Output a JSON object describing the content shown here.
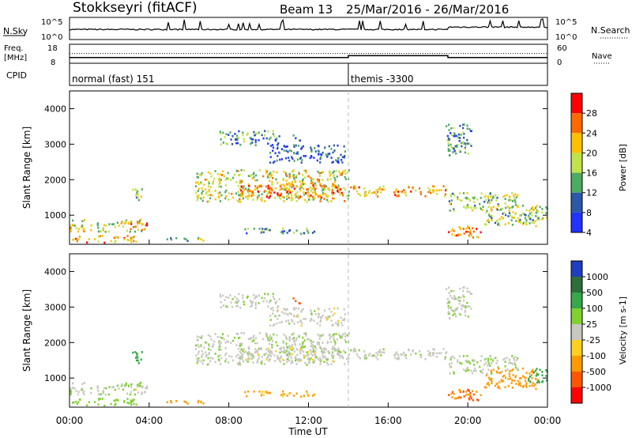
{
  "header": {
    "radar": "Stokkseyri (fitACF)",
    "beam": "Beam 13",
    "dates": "25/Mar/2016 - 26/Mar/2016"
  },
  "noise_panel": {
    "left_label": "N.Sky",
    "right_label": "N.Search",
    "tick_high": "10^5",
    "tick_low": "10^0"
  },
  "freq_panel": {
    "left_label_1": "Freq.",
    "left_label_2": "[MHz]",
    "left_ticks": [
      "18",
      "8"
    ],
    "right_ticks": [
      "60",
      "0"
    ],
    "right_label": "Nave",
    "freq_mhz": [
      {
        "start_h": 0,
        "end_h": 14,
        "value": 11
      },
      {
        "start_h": 14,
        "end_h": 19,
        "value": 12
      },
      {
        "start_h": 19,
        "end_h": 24,
        "value": 11
      }
    ],
    "nave": [
      {
        "start_h": 0,
        "end_h": 14,
        "value": 31
      },
      {
        "start_h": 14,
        "end_h": 19,
        "value": 31
      },
      {
        "start_h": 19,
        "end_h": 24,
        "value": 31
      }
    ]
  },
  "cpid_panel": {
    "label": "CPID",
    "modes": [
      {
        "start_h": 0,
        "name": "normal (fast) 151"
      },
      {
        "start_h": 14,
        "name": "themis -3300"
      }
    ]
  },
  "power_panel": {
    "ylabel": "Slant Range [km]",
    "yticks": [
      "4000",
      "3000",
      "2000",
      "1000"
    ],
    "cbar_label": "Power [dB]",
    "cbar_ticks": [
      "28",
      "24",
      "20",
      "16",
      "12",
      "8",
      "4"
    ],
    "cbar_colors": [
      "#ff0000",
      "#ff6a00",
      "#ffc000",
      "#bfe34a",
      "#4daa62",
      "#2b58a8",
      "#2233ff"
    ]
  },
  "velocity_panel": {
    "ylabel": "Slant Range [km]",
    "yticks": [
      "4000",
      "3000",
      "2000",
      "1000"
    ],
    "cbar_label": "Velocity [m s-1]",
    "cbar_ticks": [
      "1000",
      "500",
      "100",
      "25",
      "-25",
      "-100",
      "-500",
      "-1000"
    ],
    "cbar_colors": [
      "#1f3fbf",
      "#2d6e3a",
      "#35a84a",
      "#7fd12e",
      "#c8c8c0",
      "#ffd020",
      "#ff9900",
      "#ff5500",
      "#ff0000"
    ]
  },
  "xaxis": {
    "label": "Time UT",
    "ticks": [
      "00:00",
      "04:00",
      "08:00",
      "12:00",
      "16:00",
      "20:00",
      "00:00"
    ]
  },
  "chart_data": {
    "type": "heatmap",
    "title": "Stokkseyri (fitACF)  Beam 13  25/Mar/2016 - 26/Mar/2016",
    "xlabel": "Time UT",
    "ylabel": "Slant Range [km]",
    "xlim_hours": [
      0,
      24
    ],
    "ylim_km": [
      180,
      4500
    ],
    "power_scale_db": [
      0,
      30
    ],
    "velocity_scale_ms": [
      -1000,
      1000
    ],
    "scatter_bands": [
      {
        "t0": 0.0,
        "t1": 3.8,
        "r0": 560,
        "r1": 900,
        "power_db": 16,
        "velocity": 20
      },
      {
        "t0": 0.0,
        "t1": 3.5,
        "r0": 250,
        "r1": 450,
        "power_db": 20,
        "velocity": 60
      },
      {
        "t0": 3.0,
        "t1": 3.9,
        "r0": 600,
        "r1": 800,
        "power_db": 24,
        "velocity": 0
      },
      {
        "t0": 4.8,
        "t1": 7.0,
        "r0": 300,
        "r1": 400,
        "power_db": 12,
        "velocity": -150
      },
      {
        "t0": 3.1,
        "t1": 3.7,
        "r0": 1450,
        "r1": 1800,
        "power_db": 12,
        "velocity": 120
      },
      {
        "t0": 6.3,
        "t1": 14.0,
        "r0": 1400,
        "r1": 2300,
        "power_db": 16,
        "velocity": 10
      },
      {
        "t0": 8.5,
        "t1": 13.8,
        "r0": 1500,
        "r1": 1900,
        "power_db": 22,
        "velocity": 0
      },
      {
        "t0": 7.5,
        "t1": 10.5,
        "r0": 3000,
        "r1": 3400,
        "power_db": 8,
        "velocity": 5
      },
      {
        "t0": 10.0,
        "t1": 13.8,
        "r0": 2500,
        "r1": 3000,
        "power_db": 6,
        "velocity": 0
      },
      {
        "t0": 8.5,
        "t1": 12.5,
        "r0": 500,
        "r1": 650,
        "power_db": 10,
        "velocity": -120
      },
      {
        "t0": 14.0,
        "t1": 18.9,
        "r0": 1550,
        "r1": 1850,
        "power_db": 20,
        "velocity": 5
      },
      {
        "t0": 19.0,
        "t1": 22.5,
        "r0": 1150,
        "r1": 1650,
        "power_db": 14,
        "velocity": 20
      },
      {
        "t0": 19.0,
        "t1": 20.8,
        "r0": 400,
        "r1": 750,
        "power_db": 22,
        "velocity": -500
      },
      {
        "t0": 20.8,
        "t1": 23.5,
        "r0": 700,
        "r1": 1300,
        "power_db": 14,
        "velocity": -450
      },
      {
        "t0": 18.8,
        "t1": 20.2,
        "r0": 2700,
        "r1": 3600,
        "power_db": 8,
        "velocity": 10
      },
      {
        "t0": 23.0,
        "t1": 24.0,
        "r0": 900,
        "r1": 1300,
        "power_db": 14,
        "velocity": 200
      },
      {
        "t0": 11.2,
        "t1": 11.6,
        "r0": 3100,
        "r1": 3300,
        "power_db": 10,
        "velocity": -700
      }
    ]
  }
}
